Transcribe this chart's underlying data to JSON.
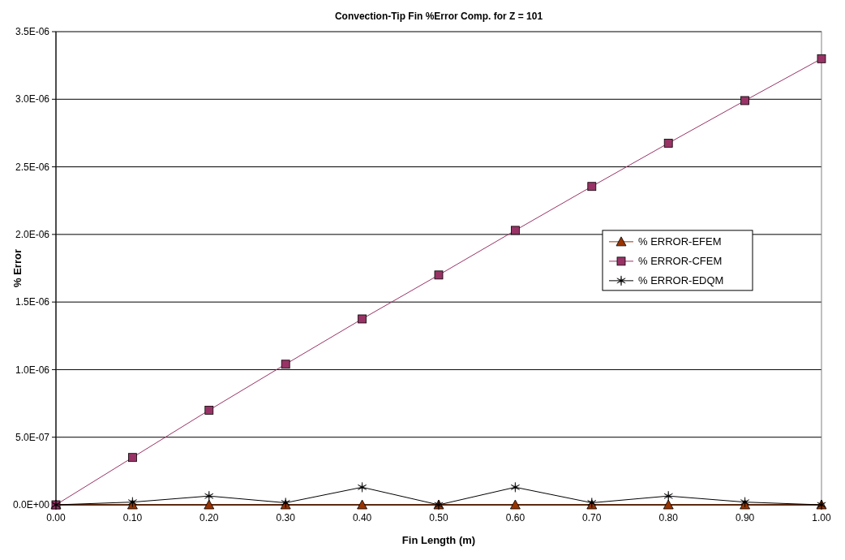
{
  "chart_data": {
    "type": "line",
    "title": "Convection-Tip Fin %Error Comp. for Z = 101",
    "xlabel": "Fin Length (m)",
    "ylabel": "% Error",
    "categories": [
      "0.00",
      "0.10",
      "0.20",
      "0.30",
      "0.40",
      "0.50",
      "0.60",
      "0.70",
      "0.80",
      "0.90",
      "1.00"
    ],
    "series": [
      {
        "name": "% ERROR-EFEM",
        "color": "#993300",
        "marker": "triangle",
        "values": [
          0,
          0,
          0,
          0,
          0,
          0,
          0,
          0,
          0,
          0,
          0
        ]
      },
      {
        "name": "% ERROR-CFEM",
        "color": "#993366",
        "marker": "square",
        "values": [
          0,
          3.5e-07,
          7e-07,
          1.04e-06,
          1.375e-06,
          1.7e-06,
          2.03e-06,
          2.355e-06,
          2.675e-06,
          2.99e-06,
          3.3e-06
        ]
      },
      {
        "name": "% ERROR-EDQM",
        "color": "#000000",
        "marker": "cross",
        "values": [
          0,
          2e-08,
          6.5e-08,
          1.5e-08,
          1.3e-07,
          0,
          1.3e-07,
          1.5e-08,
          6.5e-08,
          2e-08,
          0
        ]
      }
    ],
    "ylim": [
      0,
      3.5e-06
    ],
    "yticks": [
      {
        "value": 0,
        "label": "0.0E+00"
      },
      {
        "value": 5e-07,
        "label": "5.0E-07"
      },
      {
        "value": 1e-06,
        "label": "1.0E-06"
      },
      {
        "value": 1.5e-06,
        "label": "1.5E-06"
      },
      {
        "value": 2e-06,
        "label": "2.0E-06"
      },
      {
        "value": 2.5e-06,
        "label": "2.5E-06"
      },
      {
        "value": 3e-06,
        "label": "3.0E-06"
      },
      {
        "value": 3.5e-06,
        "label": "3.5E-06"
      }
    ],
    "grid": "y",
    "legend": "right"
  }
}
